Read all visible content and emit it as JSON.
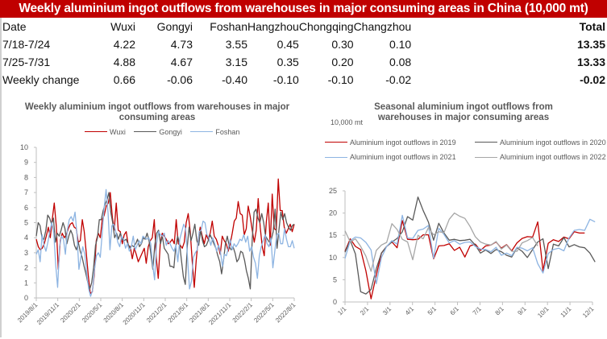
{
  "header": {
    "title": "Weekly aluminium ingot outflows from warehouses in major consuming areas in China (10,000 mt)",
    "bar_color": "#c00000"
  },
  "table": {
    "columns": [
      "Date",
      "Wuxi",
      "Gongyi",
      "Foshan",
      "Hangzhou",
      "Chongqing",
      "Changzhou",
      "Total"
    ],
    "rows": [
      [
        "7/18-7/24",
        "4.22",
        "4.73",
        "3.55",
        "0.45",
        "0.30",
        "0.10",
        "13.35"
      ],
      [
        "7/25-7/31",
        "4.88",
        "4.67",
        "3.15",
        "0.35",
        "0.20",
        "0.08",
        "13.33"
      ],
      [
        "Weekly change",
        "0.66",
        "-0.06",
        "-0.40",
        "-0.10",
        "-0.10",
        "-0.02",
        "-0.02"
      ]
    ]
  },
  "chart_data": [
    {
      "type": "line",
      "title": "Weekly aluminium ingot outflows from warehouses in major consuming areas",
      "xlabel": "",
      "ylabel": "",
      "ylim": [
        0,
        10
      ],
      "yticks": [
        "0",
        "1",
        "2",
        "3",
        "4",
        "5",
        "6",
        "7",
        "8",
        "9",
        "10"
      ],
      "xticks": [
        "2019/8/1",
        "2019/11/1",
        "2020/2/1",
        "2020/5/1",
        "2020/8/1",
        "2020/11/1",
        "2021/2/1",
        "2021/5/1",
        "2021/8/1",
        "2021/11/1",
        "2022/2/1",
        "2022/5/1",
        "2022/8/1"
      ],
      "legend": "top-center",
      "grid": false,
      "series": [
        {
          "name": "Wuxi",
          "color": "#c00000",
          "values": [
            3.9,
            3.4,
            3.2,
            3.3,
            3.6,
            4.1,
            4.7,
            4.0,
            5.2,
            6.3,
            4.8,
            1.9,
            3.8,
            4.3,
            4.0,
            4.2,
            4.6,
            4.9,
            5.0,
            4.7,
            4.6,
            3.7,
            3.8,
            5.2,
            4.4,
            3.0,
            1.5,
            0.3,
            0.4,
            1.5,
            3.8,
            4.3,
            4.0,
            5.2,
            5.5,
            6.1,
            6.3,
            7.0,
            5.4,
            4.5,
            6.3,
            4.5,
            4.4,
            3.6,
            4.2,
            4.4,
            3.5,
            3.4,
            2.6,
            3.3,
            2.9,
            2.4,
            2.7,
            3.0,
            3.3,
            2.3,
            3.4,
            3.8,
            4.0,
            5.2,
            2.7,
            1.3,
            3.6,
            4.3,
            4.1,
            3.9,
            3.6,
            3.7,
            3.9,
            3.6,
            5.2,
            3.6,
            3.5,
            3.3,
            3.7,
            5.0,
            5.6,
            4.4,
            2.4,
            0.7,
            2.5,
            3.9,
            4.7,
            4.1,
            3.6,
            4.2,
            3.9,
            4.3,
            5.1,
            4.1,
            3.9,
            3.5,
            2.9,
            4.1,
            3.8,
            3.6,
            3.1,
            3.6,
            4.3,
            5.1,
            5.3,
            6.4,
            5.6,
            5.5,
            4.2,
            4.6,
            6.1,
            5.4,
            4.5,
            3.7,
            4.5,
            6.6,
            4.7,
            3.4,
            2.8,
            5.0,
            6.3,
            3.5,
            6.9,
            4.6,
            4.5,
            7.9,
            5.8,
            5.8,
            4.7,
            4.3,
            4.6,
            4.9,
            4.4,
            4.9
          ]
        },
        {
          "name": "Gongyi",
          "color": "#595959",
          "values": [
            4.1,
            5.0,
            4.8,
            4.0,
            3.9,
            4.5,
            5.5,
            5.3,
            4.9,
            5.3,
            3.7,
            4.3,
            4.1,
            4.5,
            5.0,
            4.6,
            3.6,
            4.1,
            4.5,
            4.2,
            3.5,
            3.2,
            3.7,
            3.1,
            2.7,
            2.1,
            1.6,
            1.0,
            0.6,
            1.0,
            2.0,
            3.5,
            4.0,
            5.2,
            5.2,
            5.8,
            6.2,
            6.5,
            7.0,
            5.7,
            5.0,
            4.0,
            4.3,
            3.9,
            4.3,
            3.9,
            3.8,
            3.9,
            3.6,
            3.3,
            3.5,
            3.4,
            3.6,
            3.9,
            3.4,
            3.6,
            4.0,
            3.9,
            4.3,
            3.8,
            2.9,
            1.9,
            3.5,
            4.3,
            4.5,
            3.6,
            4.1,
            3.3,
            3.1,
            2.9,
            2.1,
            2.1,
            2.0,
            3.4,
            4.1,
            3.6,
            2.5,
            1.4,
            0.9,
            3.4,
            4.7,
            3.8,
            4.3,
            4.9,
            3.8,
            3.5,
            4.5,
            3.8,
            3.4,
            3.5,
            3.8,
            4.2,
            3.9,
            3.6,
            3.3,
            2.8,
            2.4,
            1.6,
            2.5,
            3.6,
            4.1,
            3.4,
            3.2,
            3.4,
            3.0,
            2.4,
            2.6,
            3.1,
            3.0,
            2.5,
            1.8,
            1.3,
            0.6,
            3.9,
            5.7,
            5.9,
            5.3,
            5.0,
            5.6,
            5.0,
            4.1,
            3.9,
            3.7,
            3.9,
            4.4,
            5.9,
            3.3,
            4.5,
            5.7,
            5.2,
            5.6,
            5.0,
            4.7,
            4.5,
            4.8,
            4.9
          ]
        },
        {
          "name": "Foshan",
          "color": "#8db4e2",
          "values": [
            2.9,
            3.2,
            2.4,
            4.2,
            3.5,
            3.1,
            3.7,
            4.4,
            5.0,
            4.3,
            2.2,
            0.7,
            3.4,
            4.1,
            3.9,
            2.9,
            4.5,
            5.2,
            5.4,
            5.1,
            5.7,
            4.2,
            1.9,
            2.7,
            3.4,
            2.9,
            1.6,
            0.6,
            0.1,
            0.5,
            1.9,
            2.8,
            3.0,
            2.7,
            4.3,
            6.0,
            7.2,
            5.7,
            3.2,
            4.8,
            4.9,
            4.4,
            3.7,
            3.4,
            4.1,
            3.9,
            3.3,
            3.6,
            3.1,
            3.4,
            4.1,
            3.2,
            3.5,
            3.8,
            3.6,
            4.1,
            4.0,
            3.9,
            4.0,
            3.6,
            2.2,
            1.2,
            3.6,
            4.4,
            4.2,
            4.1,
            4.3,
            3.5,
            3.8,
            3.6,
            3.3,
            3.1,
            3.5,
            2.4,
            3.9,
            4.4,
            4.9,
            4.6,
            2.6,
            0.6,
            1.1,
            2.7,
            3.0,
            3.2,
            4.4,
            4.5,
            5.1,
            5.0,
            4.2,
            4.0,
            3.5,
            4.0,
            3.6,
            3.1,
            3.5,
            3.0,
            2.1,
            2.9,
            2.8,
            3.3,
            3.9,
            3.2,
            3.6,
            3.4,
            3.6,
            3.9,
            3.8,
            4.2,
            3.7,
            4.1,
            3.1,
            3.4,
            2.7,
            2.3,
            1.3,
            2.8,
            3.4,
            3.8,
            4.2,
            3.6,
            3.4,
            4.0,
            2.0,
            3.1,
            4.2,
            4.3,
            3.6,
            3.6,
            4.6,
            3.9,
            3.4,
            3.4,
            3.8,
            3.3
          ]
        }
      ]
    },
    {
      "type": "line",
      "title": "Seasonal aluminium ingot outflows from warehouses in major consuming areas",
      "unit_label": "10,000 mt",
      "xlabel": "",
      "ylabel": "10,000 mt",
      "ylim": [
        0,
        25
      ],
      "yticks": [
        "0",
        "5",
        "10",
        "15",
        "20",
        "25"
      ],
      "xticks": [
        "1/1",
        "2/1",
        "3/1",
        "4/1",
        "5/1",
        "6/1",
        "7/1",
        "8/1",
        "9/1",
        "10/1",
        "11/1",
        "12/1"
      ],
      "legend": "top",
      "grid": false,
      "series": [
        {
          "name": "Aluminium ingot outflows in 2019",
          "color": "#c00000",
          "values": [
            11.4,
            14.2,
            12.5,
            11.8,
            7.0,
            0.7,
            6.0,
            11.0,
            12.5,
            13.5,
            12.2,
            18.3,
            14.1,
            14.0,
            14.1,
            15.1,
            15.1,
            9.7,
            12.6,
            12.7,
            13.1,
            11.6,
            12.3,
            10.1,
            12.6,
            13.0,
            11.6,
            12.6,
            12.8,
            13.5,
            12.1,
            12.9,
            11.5,
            13.3,
            14.3,
            14.7,
            14.6,
            18.0,
            7.0,
            13.2,
            14.0,
            13.6,
            14.6,
            14.2,
            15.8,
            15.5,
            15.5
          ]
        },
        {
          "name": "Aluminium ingot outflows in 2020",
          "color": "#595959",
          "values": [
            11.2,
            13.8,
            10.8,
            2.3,
            1.8,
            2.8,
            7.5,
            11.0,
            12.5,
            13.5,
            14.3,
            15.8,
            19.2,
            18.4,
            23.6,
            20.6,
            18.0,
            13.9,
            17.7,
            15.5,
            13.9,
            14.1,
            13.8,
            13.9,
            14.1,
            12.8,
            11.0,
            11.7,
            10.9,
            11.8,
            11.3,
            10.5,
            10.1,
            12.2,
            11.4,
            10.0,
            11.8,
            13.5,
            14.2,
            7.5,
            13.0,
            12.6,
            14.5,
            12.4,
            12.9,
            12.4,
            12.2,
            11.0,
            9.0
          ]
        },
        {
          "name": "Aluminium ingot outflows in 2021",
          "color": "#8db4e2",
          "values": [
            9.8,
            13.8,
            14.6,
            14.4,
            13.4,
            11.7,
            4.1,
            10.0,
            12.5,
            13.8,
            13.0,
            19.5,
            14.4,
            14.3,
            16.1,
            16.4,
            17.2,
            9.8,
            16.6,
            15.2,
            13.3,
            13.8,
            13.0,
            13.4,
            13.5,
            12.5,
            11.9,
            11.8,
            11.3,
            12.3,
            10.5,
            11.0,
            10.4,
            12.3,
            12.1,
            11.5,
            12.2,
            8.6,
            6.5,
            10.9,
            11.8,
            12.1,
            11.5,
            14.4,
            16.1,
            16.3,
            16.1,
            18.6,
            18.0
          ]
        },
        {
          "name": "Aluminium ingot outflows in 2022",
          "color": "#a6a6a6",
          "values": [
            16.0,
            13.5,
            14.2,
            12.5,
            10.3,
            6.9,
            11.6,
            12.8,
            13.4,
            17.6,
            16.3,
            14.1,
            13.5,
            9.5,
            15.0,
            14.2,
            16.7,
            15.1,
            15.8,
            15.6,
            18.6,
            20.0,
            19.3,
            18.8,
            17.0,
            14.7,
            13.5,
            13.0,
            12.8,
            13.6,
            11.9,
            12.8,
            11.4,
            11.4,
            13.3,
            13.8,
            14.5,
            12.6
          ]
        }
      ]
    }
  ]
}
